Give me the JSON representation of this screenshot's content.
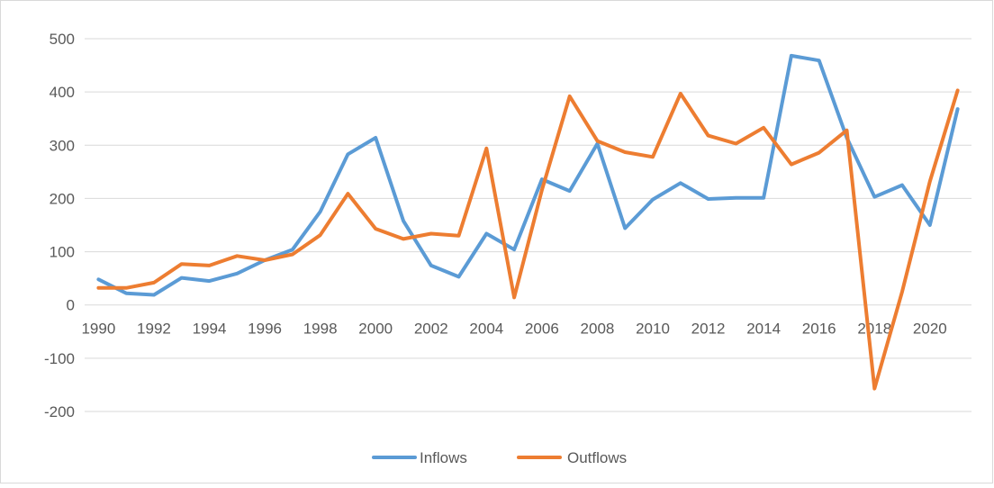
{
  "chart_data": {
    "type": "line",
    "title": "",
    "xlabel": "",
    "ylabel": "",
    "x": [
      1990,
      1991,
      1992,
      1993,
      1994,
      1995,
      1996,
      1997,
      1998,
      1999,
      2000,
      2001,
      2002,
      2003,
      2004,
      2005,
      2006,
      2007,
      2008,
      2009,
      2010,
      2011,
      2012,
      2013,
      2014,
      2015,
      2016,
      2017,
      2018,
      2019,
      2020,
      2021
    ],
    "x_tick_labels": [
      "1990",
      "1992",
      "1994",
      "1996",
      "1998",
      "2000",
      "2002",
      "2004",
      "2006",
      "2008",
      "2010",
      "2012",
      "2014",
      "2016",
      "2018",
      "2020"
    ],
    "y_ticks": [
      -200,
      -100,
      0,
      100,
      200,
      300,
      400,
      500
    ],
    "y_tick_labels": [
      "-200",
      "-100",
      "0",
      "100",
      "200",
      "300",
      "400",
      "500"
    ],
    "ylim": [
      -200,
      500
    ],
    "grid": true,
    "legend_position": "bottom",
    "series": [
      {
        "name": "Inflows",
        "color": "#5b9bd5",
        "values": [
          48,
          22,
          19,
          51,
          45,
          59,
          84,
          104,
          175,
          283,
          314,
          158,
          74,
          53,
          134,
          104,
          236,
          214,
          303,
          144,
          198,
          229,
          199,
          201,
          201,
          468,
          459,
          314,
          203,
          225,
          150,
          368
        ]
      },
      {
        "name": "Outflows",
        "color": "#ed7d31",
        "values": [
          32,
          32,
          42,
          77,
          74,
          92,
          84,
          95,
          131,
          209,
          143,
          124,
          134,
          130,
          294,
          14,
          216,
          392,
          308,
          287,
          278,
          397,
          318,
          303,
          333,
          264,
          286,
          328,
          -157,
          25,
          232,
          403
        ]
      }
    ]
  }
}
